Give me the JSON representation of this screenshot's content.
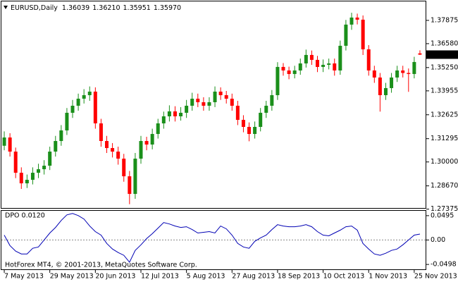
{
  "chart_data": {
    "type": "candlestick",
    "header": "EURUSD,Daily",
    "ohlc_labels": [
      "1.36039",
      "1.36210",
      "1.35951",
      "1.35970"
    ],
    "categories": [
      "7 May 2013",
      null,
      null,
      null,
      null,
      null,
      null,
      null,
      "29 May 2013",
      null,
      null,
      null,
      null,
      null,
      null,
      null,
      "20 Jun 2013",
      null,
      null,
      null,
      null,
      null,
      null,
      null,
      "12 Jul 2013",
      null,
      null,
      null,
      null,
      null,
      null,
      null,
      "5 Aug 2013",
      null,
      null,
      null,
      null,
      null,
      null,
      null,
      "27 Aug 2013",
      null,
      null,
      null,
      null,
      null,
      null,
      null,
      "18 Sep 2013",
      null,
      null,
      null,
      null,
      null,
      null,
      null,
      "10 Oct 2013",
      null,
      null,
      null,
      null,
      null,
      null,
      null,
      "1 Nov 2013",
      null,
      null,
      null,
      null,
      null,
      null,
      null,
      "25 Nov 2013",
      null
    ],
    "open": [
      1.309,
      1.31361,
      1.30576,
      1.29399,
      1.28811,
      1.29007,
      1.29399,
      1.29595,
      1.29792,
      1.30576,
      1.31165,
      1.31754,
      1.32735,
      1.33127,
      1.33519,
      1.33715,
      1.33912,
      1.32146,
      1.31165,
      1.30773,
      1.30576,
      1.30184,
      1.29203,
      1.28222,
      1.30184,
      1.31165,
      1.30969,
      1.31557,
      1.32146,
      1.32538,
      1.32813,
      1.32538,
      1.32735,
      1.33127,
      1.33519,
      1.33323,
      1.33127,
      1.33323,
      1.33912,
      1.33715,
      1.33519,
      1.33127,
      1.32342,
      1.3195,
      1.31557,
      1.3195,
      1.32735,
      1.33127,
      1.33715,
      1.35285,
      1.35089,
      1.34893,
      1.35089,
      1.35481,
      1.35952,
      1.35678,
      1.35285,
      1.35403,
      1.35481,
      1.35089,
      1.36462,
      1.3764,
      1.38032,
      1.37914,
      1.36266,
      1.35089,
      1.34697,
      1.33715,
      1.34108,
      1.34697,
      1.35089,
      1.3495,
      1.34893,
      1.36039
    ],
    "high": [
      1.317,
      1.316,
      1.308,
      1.297,
      1.293,
      1.297,
      1.299,
      1.301,
      1.3085,
      1.3145,
      1.3205,
      1.33,
      1.3345,
      1.338,
      1.3405,
      1.342,
      1.3415,
      1.324,
      1.3145,
      1.3105,
      1.3085,
      1.3045,
      1.295,
      1.305,
      1.3145,
      1.314,
      1.3185,
      1.324,
      1.328,
      1.3315,
      1.331,
      1.3305,
      1.3345,
      1.3385,
      1.338,
      1.336,
      1.336,
      1.342,
      1.3415,
      1.3395,
      1.338,
      1.334,
      1.326,
      1.322,
      1.3225,
      1.33,
      1.334,
      1.34,
      1.3555,
      1.355,
      1.353,
      1.3535,
      1.3575,
      1.3625,
      1.362,
      1.359,
      1.357,
      1.3575,
      1.3575,
      1.3675,
      1.379,
      1.383,
      1.3825,
      1.3815,
      1.365,
      1.3535,
      1.3495,
      1.344,
      1.3495,
      1.3535,
      1.3535,
      1.352,
      1.3585,
      1.3621
    ],
    "low": [
      1.3065,
      1.303,
      1.291,
      1.285,
      1.2855,
      1.2875,
      1.291,
      1.293,
      1.2955,
      1.303,
      1.309,
      1.315,
      1.3245,
      1.3285,
      1.3325,
      1.334,
      1.3185,
      1.3085,
      1.305,
      1.3025,
      1.2985,
      1.289,
      1.2765,
      1.2795,
      1.299,
      1.3065,
      1.307,
      1.313,
      1.3185,
      1.3225,
      1.3225,
      1.323,
      1.3245,
      1.3285,
      1.3305,
      1.3285,
      1.3285,
      1.3305,
      1.3345,
      1.3325,
      1.3285,
      1.3205,
      1.3165,
      1.3115,
      1.313,
      1.317,
      1.3245,
      1.3285,
      1.3345,
      1.348,
      1.346,
      1.3465,
      1.3485,
      1.3525,
      1.354,
      1.35,
      1.35,
      1.3515,
      1.348,
      1.3485,
      1.362,
      1.3735,
      1.3765,
      1.3595,
      1.348,
      1.344,
      1.328,
      1.3345,
      1.3385,
      1.3445,
      1.347,
      1.339,
      1.3465,
      1.35951
    ],
    "close": [
      1.31361,
      1.30576,
      1.29399,
      1.28811,
      1.29007,
      1.29399,
      1.29595,
      1.29792,
      1.30576,
      1.31165,
      1.31754,
      1.32735,
      1.33127,
      1.33519,
      1.33715,
      1.33912,
      1.32146,
      1.31165,
      1.30773,
      1.30576,
      1.30184,
      1.29203,
      1.28222,
      1.30184,
      1.31165,
      1.30969,
      1.31557,
      1.32146,
      1.32538,
      1.32813,
      1.32538,
      1.32735,
      1.33127,
      1.33519,
      1.33323,
      1.33127,
      1.33323,
      1.33912,
      1.33715,
      1.33519,
      1.33127,
      1.32342,
      1.3195,
      1.31557,
      1.3195,
      1.32735,
      1.33127,
      1.33715,
      1.35285,
      1.35089,
      1.34893,
      1.35089,
      1.35481,
      1.35952,
      1.35678,
      1.35285,
      1.35403,
      1.35481,
      1.35089,
      1.36462,
      1.3764,
      1.38032,
      1.37914,
      1.36266,
      1.35089,
      1.34697,
      1.33715,
      1.34108,
      1.34697,
      1.35089,
      1.3495,
      1.34893,
      1.3556,
      1.3597
    ],
    "up_color": "#1a8f1a",
    "down_color": "#ff0000",
    "ylim": [
      1.2744,
      1.3893
    ],
    "yticks": [
      1.37875,
      {
        "value": 1.3658,
        "label": "1.36580"
      },
      {
        "value": 1.3525,
        "label": "1.35250"
      },
      1.33955,
      1.32625,
      1.31295,
      {
        "value": 1.3,
        "label": "1.30000"
      },
      {
        "value": 1.2867,
        "label": "1.28670"
      },
      1.27375
    ],
    "last_price": {
      "value": 1.3597,
      "label": "1.35970"
    },
    "indicator": {
      "type": "line",
      "title": "DPO 0.0120",
      "color": "#0000b4",
      "values": [
        0.0099,
        -0.0114,
        -0.0227,
        -0.0284,
        -0.0284,
        -0.017,
        -0.0142,
        0,
        0.0142,
        0.0255,
        0.0397,
        0.0511,
        0.0539,
        0.0497,
        0.0426,
        0.0284,
        0.017,
        0.0099,
        -0.0071,
        -0.0184,
        -0.0255,
        -0.0312,
        -0.0454,
        -0.0213,
        -0.0099,
        0.0028,
        0.0128,
        0.0241,
        0.0355,
        0.0326,
        0.0284,
        0.0255,
        0.027,
        0.0213,
        0.0142,
        0.0156,
        0.017,
        0.0142,
        0.0284,
        0.0227,
        0.0099,
        -0.0071,
        -0.0142,
        -0.017,
        -0.0028,
        0.0043,
        0.0099,
        0.0213,
        0.0312,
        0.0284,
        0.027,
        0.027,
        0.0284,
        0.0312,
        0.027,
        0.017,
        0.0099,
        0.0085,
        0.0142,
        0.0199,
        0.027,
        0.0284,
        0.0199,
        -0.0071,
        -0.0184,
        -0.0284,
        -0.0312,
        -0.027,
        -0.0213,
        -0.0184,
        -0.0099,
        0,
        0.0099,
        0.012
      ],
      "ylim": [
        -0.0597,
        0.0594
      ],
      "yticks": [
        0.0495,
        {
          "value": 0,
          "label": "0.00"
        },
        -0.0498
      ],
      "zero_line": true
    },
    "footer": "HotForex MT4, © 2001-2013, MetaQuotes Software Corp."
  }
}
